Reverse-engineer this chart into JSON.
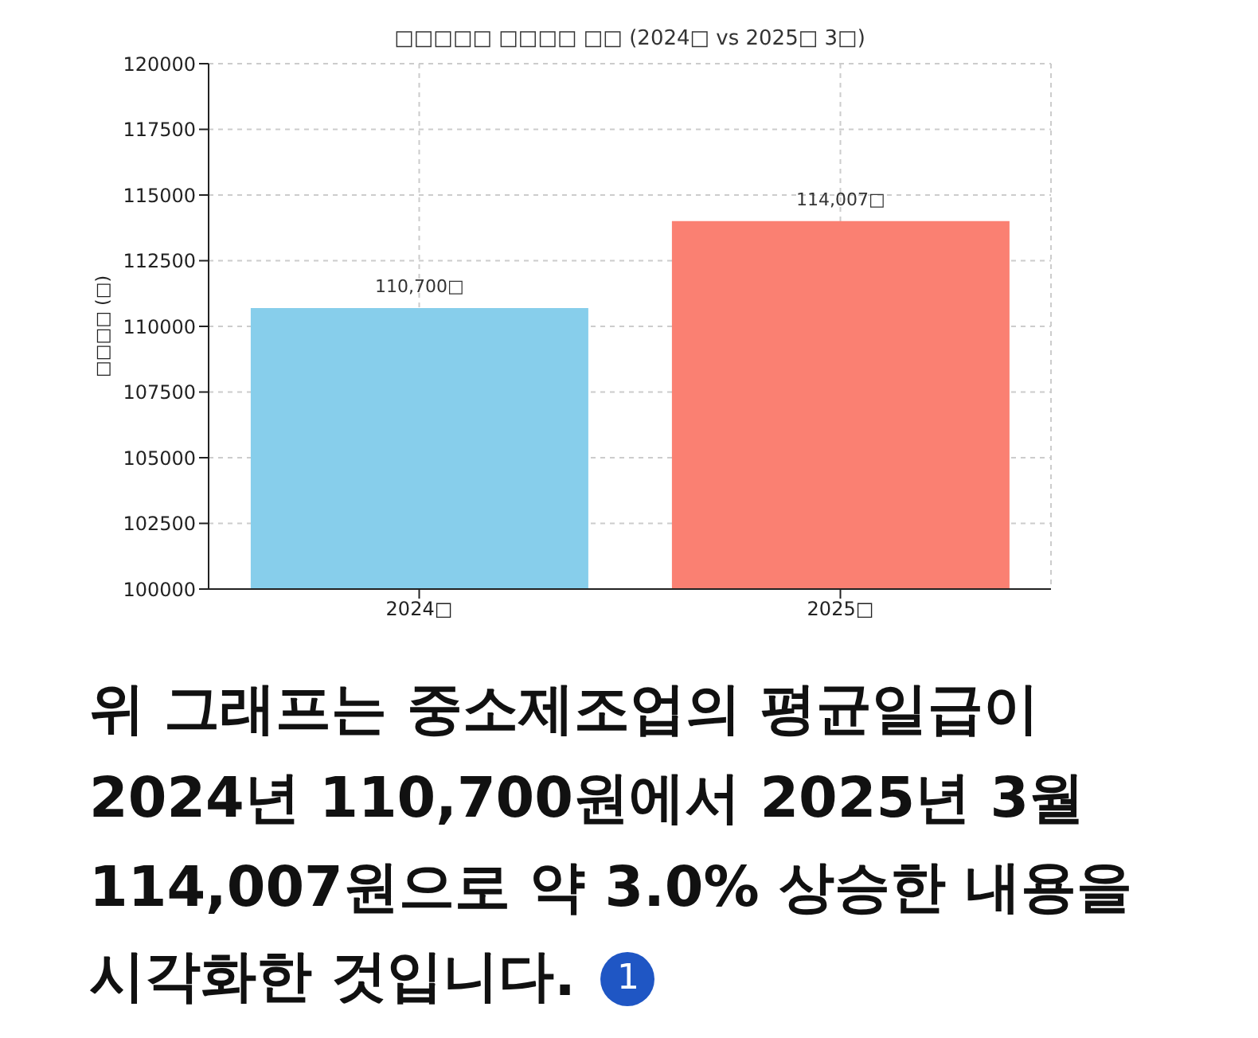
{
  "chart_data": {
    "type": "bar",
    "title": "□□□□□ □□□□ □□ (2024□ vs 2025□ 3□)",
    "ylabel": "□□□□ (□)",
    "categories": [
      "2024□",
      "2025□"
    ],
    "values": [
      110700,
      114007
    ],
    "colors": [
      "#87ceeb",
      "#fa8072"
    ],
    "value_labels": [
      "110,700□",
      "114,007□"
    ],
    "ylim": [
      100000,
      120000
    ],
    "yticks": [
      100000,
      102500,
      105000,
      107500,
      110000,
      112500,
      115000,
      117500,
      120000
    ],
    "grid": true,
    "annotations": [
      "위 그래프는 중소제조업의 평균일급이\n2024년 110,700원에서 2025년 3월\n114,007원으로 약 3.0% 상승한 내용을\n시각화한 것입니다.",
      "1"
    ]
  }
}
